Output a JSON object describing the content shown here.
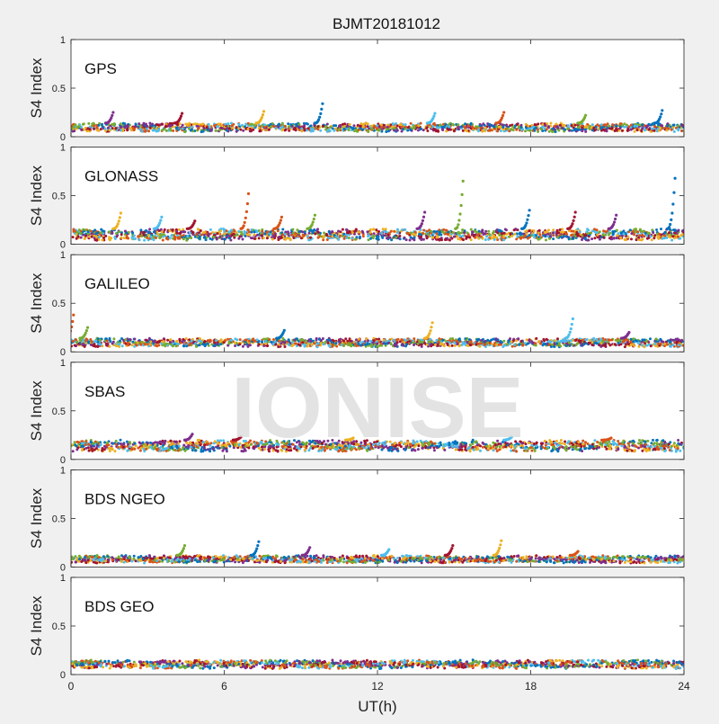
{
  "title": "BJMT20181012",
  "watermark": "IONISE",
  "xlabel": "UT(h)",
  "colors": {
    "background": "#f0f0f0",
    "axes_face": "#ffffff",
    "axes_edge": "#262626",
    "series": [
      "#0072BD",
      "#D95319",
      "#EDB120",
      "#7E2F8E",
      "#77AC30",
      "#4DBEEE",
      "#A2142F"
    ]
  },
  "chart_data": [
    {
      "type": "scatter",
      "panel_label": "GPS",
      "ylabel": "S4 Index",
      "xlim": [
        0,
        24
      ],
      "ylim": [
        0,
        1
      ],
      "x_ticks": [
        0,
        6,
        12,
        18,
        24
      ],
      "y_ticks": [
        0,
        0.5,
        1
      ],
      "x_tick_labels_shown": false,
      "baseline_range": [
        0.05,
        0.14
      ],
      "data_gap_x": [
        2.55,
        2.62
      ],
      "spikes": [
        [
          9.8,
          0.34
        ],
        [
          1.6,
          0.25
        ],
        [
          4.3,
          0.24
        ],
        [
          7.5,
          0.26
        ],
        [
          14.2,
          0.24
        ],
        [
          16.9,
          0.25
        ],
        [
          20.1,
          0.22
        ],
        [
          23.1,
          0.27
        ]
      ]
    },
    {
      "type": "scatter",
      "panel_label": "GLONASS",
      "ylabel": "S4 Index",
      "xlim": [
        0,
        24
      ],
      "ylim": [
        0,
        1
      ],
      "x_ticks": [
        0,
        6,
        12,
        18,
        24
      ],
      "y_ticks": [
        0,
        0.5,
        1
      ],
      "x_tick_labels_shown": false,
      "baseline_range": [
        0.04,
        0.16
      ],
      "data_gap_x": [
        2.55,
        2.62
      ],
      "spikes": [
        [
          6.9,
          0.52
        ],
        [
          15.3,
          0.65
        ],
        [
          23.6,
          0.68
        ],
        [
          13.8,
          0.33
        ],
        [
          19.7,
          0.33
        ],
        [
          1.9,
          0.32
        ],
        [
          3.5,
          0.28
        ],
        [
          8.2,
          0.28
        ],
        [
          9.5,
          0.3
        ],
        [
          17.9,
          0.35
        ],
        [
          21.3,
          0.3
        ],
        [
          4.8,
          0.24
        ]
      ]
    },
    {
      "type": "scatter",
      "panel_label": "GALILEO",
      "ylabel": "S4 Index",
      "xlim": [
        0,
        24
      ],
      "ylim": [
        0,
        1
      ],
      "x_ticks": [
        0,
        6,
        12,
        18,
        24
      ],
      "y_ticks": [
        0,
        0.5,
        1
      ],
      "x_tick_labels_shown": false,
      "baseline_range": [
        0.05,
        0.14
      ],
      "data_gap_x": [],
      "spikes": [
        [
          14.1,
          0.3
        ],
        [
          19.6,
          0.34
        ],
        [
          0.05,
          0.38
        ],
        [
          0.6,
          0.25
        ],
        [
          8.3,
          0.22
        ],
        [
          21.8,
          0.2
        ]
      ]
    },
    {
      "type": "scatter",
      "panel_label": "SBAS",
      "ylabel": "S4 Index",
      "xlim": [
        0,
        24
      ],
      "ylim": [
        0,
        1
      ],
      "x_ticks": [
        0,
        6,
        12,
        18,
        24
      ],
      "y_ticks": [
        0,
        0.5,
        1
      ],
      "x_tick_labels_shown": false,
      "baseline_range": [
        0.08,
        0.2
      ],
      "data_gap_x": [
        2.55,
        2.62
      ],
      "spikes": [
        [
          4.7,
          0.26
        ],
        [
          6.6,
          0.23
        ],
        [
          11.0,
          0.22
        ],
        [
          17.2,
          0.23
        ],
        [
          21.1,
          0.22
        ]
      ]
    },
    {
      "type": "scatter",
      "panel_label": "BDS NGEO",
      "ylabel": "S4 Index",
      "xlim": [
        0,
        24
      ],
      "ylim": [
        0,
        1
      ],
      "x_ticks": [
        0,
        6,
        12,
        18,
        24
      ],
      "y_ticks": [
        0,
        0.5,
        1
      ],
      "x_tick_labels_shown": false,
      "baseline_range": [
        0.04,
        0.12
      ],
      "data_gap_x": [
        2.55,
        2.62
      ],
      "spikes": [
        [
          4.4,
          0.22
        ],
        [
          7.3,
          0.26
        ],
        [
          9.3,
          0.2
        ],
        [
          14.9,
          0.22
        ],
        [
          16.8,
          0.27
        ],
        [
          12.4,
          0.18
        ],
        [
          19.8,
          0.16
        ]
      ]
    },
    {
      "type": "scatter",
      "panel_label": "BDS GEO",
      "ylabel": "S4 Index",
      "xlim": [
        0,
        24
      ],
      "ylim": [
        0,
        1
      ],
      "x_ticks": [
        0,
        6,
        12,
        18,
        24
      ],
      "y_ticks": [
        0,
        0.5,
        1
      ],
      "x_tick_labels_shown": true,
      "baseline_range": [
        0.06,
        0.15
      ],
      "data_gap_x": [
        2.55,
        2.62
      ],
      "spikes": []
    }
  ]
}
